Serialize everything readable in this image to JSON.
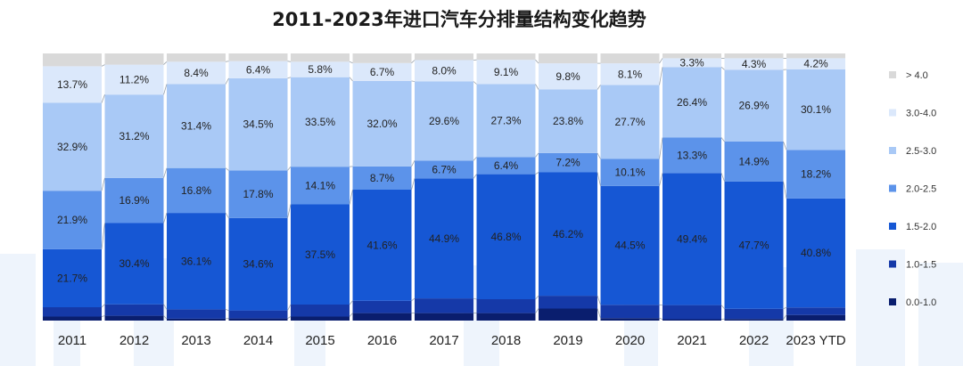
{
  "chart_data": {
    "type": "bar",
    "stacked": true,
    "percent_stacked": true,
    "title": "2011-2023年进口汽车分排量结构变化趋势",
    "xlabel": "",
    "ylabel": "",
    "ylim": [
      0,
      100
    ],
    "legend_position": "right",
    "categories": [
      "2011",
      "2012",
      "2013",
      "2014",
      "2015",
      "2016",
      "2017",
      "2018",
      "2019",
      "2020",
      "2021",
      "2022",
      "2023 YTD"
    ],
    "series": [
      {
        "name": "0.0-1.0",
        "color": "#0a1e6e",
        "values": [
          1.5,
          1.8,
          0.7,
          0.8,
          1.5,
          2.8,
          2.8,
          2.8,
          4.5,
          0.9,
          0.5,
          0.6,
          2.1
        ],
        "labels": [
          "",
          "",
          "",
          "",
          "",
          "",
          "",
          "",
          "",
          "",
          "",
          "",
          ""
        ]
      },
      {
        "name": "1.0-1.5",
        "color": "#1539a8",
        "values": [
          3.5,
          4.3,
          3.5,
          3.0,
          4.5,
          4.6,
          5.5,
          5.2,
          4.8,
          5.0,
          5.3,
          3.8,
          2.8
        ],
        "labels": [
          "",
          "",
          "",
          "",
          "",
          "",
          "",
          "",
          "",
          "",
          "",
          "",
          ""
        ]
      },
      {
        "name": "1.5-2.0",
        "color": "#1657d4",
        "values": [
          21.7,
          30.4,
          36.1,
          34.6,
          37.5,
          41.6,
          44.9,
          46.8,
          46.2,
          44.5,
          49.4,
          47.7,
          40.8
        ],
        "labels": [
          "21.7%",
          "30.4%",
          "36.1%",
          "34.6%",
          "37.5%",
          "41.6%",
          "44.9%",
          "46.8%",
          "46.2%",
          "44.5%",
          "49.4%",
          "47.7%",
          "40.8%"
        ]
      },
      {
        "name": "2.0-2.5",
        "color": "#5c93ea",
        "values": [
          21.9,
          16.9,
          16.8,
          17.8,
          14.1,
          8.7,
          6.7,
          6.4,
          7.2,
          10.1,
          13.3,
          14.9,
          18.2
        ],
        "labels": [
          "21.9%",
          "16.9%",
          "16.8%",
          "17.8%",
          "14.1%",
          "8.7%",
          "6.7%",
          "6.4%",
          "7.2%",
          "10.1%",
          "13.3%",
          "14.9%",
          "18.2%"
        ]
      },
      {
        "name": "2.5-3.0",
        "color": "#a9c9f6",
        "values": [
          32.9,
          31.2,
          31.4,
          34.5,
          33.5,
          32.0,
          29.6,
          27.3,
          23.8,
          27.7,
          26.4,
          26.9,
          30.1
        ],
        "labels": [
          "32.9%",
          "31.2%",
          "31.4%",
          "34.5%",
          "33.5%",
          "32.0%",
          "29.6%",
          "27.3%",
          "23.8%",
          "27.7%",
          "26.4%",
          "26.9%",
          "30.1%"
        ]
      },
      {
        "name": "3.0-4.0",
        "color": "#dbe8fb",
        "values": [
          13.7,
          11.2,
          8.4,
          6.4,
          5.8,
          6.7,
          8.0,
          9.1,
          9.8,
          8.1,
          3.3,
          4.3,
          4.2
        ],
        "labels": [
          "13.7%",
          "11.2%",
          "8.4%",
          "6.4%",
          "5.8%",
          "6.7%",
          "8.0%",
          "9.1%",
          "9.8%",
          "8.1%",
          "3.3%",
          "4.3%",
          "4.2%"
        ]
      },
      {
        "name": "> 4.0",
        "color": "#d9d9d9",
        "values": [
          4.8,
          4.2,
          3.1,
          2.9,
          3.1,
          3.6,
          2.5,
          2.4,
          3.7,
          3.7,
          1.8,
          1.8,
          1.8
        ],
        "labels": [
          "",
          "",
          "",
          "",
          "",
          "",
          "",
          "",
          "",
          "",
          "",
          "",
          ""
        ]
      }
    ],
    "legend_order": [
      "> 4.0",
      "3.0-4.0",
      "2.5-3.0",
      "2.0-2.5",
      "1.5-2.0",
      "1.0-1.5",
      "0.0-1.0"
    ],
    "grid": false,
    "connector_lines": true
  }
}
